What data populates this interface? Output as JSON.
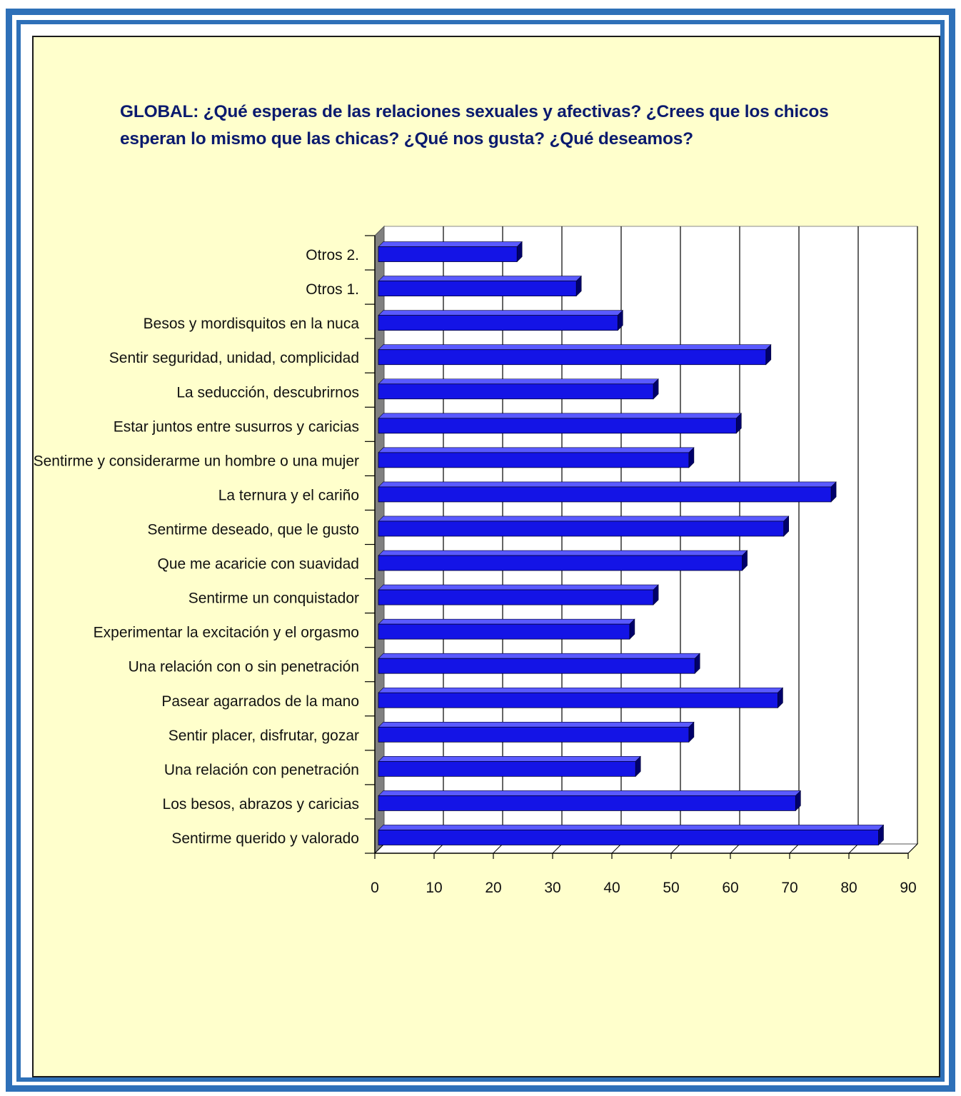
{
  "colors": {
    "frame": "#2e70b8",
    "panel_background": "#ffffcc",
    "plot_background": "#ffffff",
    "bar_face": "#1414e6",
    "title_text": "#0a1a6e"
  },
  "chart_data": {
    "type": "bar",
    "orientation": "horizontal",
    "title": "GLOBAL: ¿Qué esperas de las relaciones sexuales y afectivas? ¿Crees que los chicos esperan lo mismo que las chicas? ¿Qué nos gusta? ¿Qué deseamos?",
    "categories": [
      "Otros 2.",
      "Otros 1.",
      "Besos y mordisquitos en la nuca",
      "Sentir seguridad, unidad, complicidad",
      "La seducción, descubrirnos",
      "Estar juntos entre susurros y caricias",
      "Sentirme y considerarme un hombre o una mujer",
      "La ternura y el cariño",
      "Sentirme deseado, que le gusto",
      "Que me acaricie con suavidad",
      "Sentirme un conquistador",
      "Experimentar la excitación y el orgasmo",
      "Una relación con o sin penetración",
      "Pasear agarrados de la mano",
      "Sentir placer, disfrutar, gozar",
      "Una relación con penetración",
      "Los besos, abrazos y caricias",
      "Sentirme querido y valorado"
    ],
    "values": [
      24,
      34,
      41,
      66,
      47,
      61,
      53,
      77,
      69,
      62,
      47,
      43,
      54,
      68,
      53,
      44,
      71,
      85
    ],
    "xlim": [
      0,
      90
    ],
    "xticks": [
      "0",
      "10",
      "20",
      "30",
      "40",
      "50",
      "60",
      "70",
      "80",
      "90"
    ],
    "grid": true,
    "legend": "none",
    "style": "3d"
  }
}
